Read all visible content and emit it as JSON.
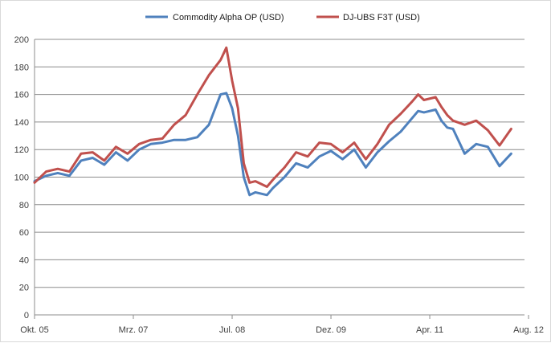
{
  "chart_data": {
    "type": "line",
    "title": "",
    "xlabel": "",
    "ylabel": "",
    "ylim": [
      0,
      200
    ],
    "y_ticks": [
      "0",
      "20",
      "40",
      "60",
      "80",
      "100",
      "120",
      "140",
      "160",
      "180",
      "200"
    ],
    "x_tick_labels": [
      "Okt. 05",
      "Mrz. 07",
      "Jul. 08",
      "Dez. 09",
      "Apr. 11",
      "Aug. 12"
    ],
    "grid": "horizontal",
    "legend": "top",
    "x_range": [
      "2005-10",
      "2012-08"
    ],
    "series": [
      {
        "name": "Commodity Alpha OP (USD)",
        "color": "#4f81bd",
        "x": [
          "2005-10",
          "2005-12",
          "2006-02",
          "2006-04",
          "2006-06",
          "2006-08",
          "2006-10",
          "2006-12",
          "2007-02",
          "2007-04",
          "2007-06",
          "2007-08",
          "2007-10",
          "2007-12",
          "2008-02",
          "2008-04",
          "2008-06",
          "2008-07",
          "2008-08",
          "2008-09",
          "2008-10",
          "2008-11",
          "2008-12",
          "2009-02",
          "2009-03",
          "2009-05",
          "2009-07",
          "2009-09",
          "2009-11",
          "2010-01",
          "2010-03",
          "2010-05",
          "2010-07",
          "2010-09",
          "2010-11",
          "2011-01",
          "2011-03",
          "2011-04",
          "2011-05",
          "2011-07",
          "2011-08",
          "2011-09",
          "2011-10",
          "2011-12",
          "2012-02",
          "2012-04",
          "2012-06",
          "2012-08"
        ],
        "values": [
          97,
          101,
          103,
          101,
          112,
          114,
          109,
          118,
          112,
          120,
          124,
          125,
          127,
          127,
          129,
          138,
          160,
          161,
          150,
          130,
          100,
          87,
          89,
          87,
          92,
          100,
          110,
          107,
          115,
          119,
          113,
          120,
          107,
          118,
          126,
          133,
          143,
          148,
          147,
          149,
          141,
          136,
          135,
          117,
          124,
          122,
          108,
          117
        ]
      },
      {
        "name": "DJ-UBS F3T (USD)",
        "color": "#c0504d",
        "x": [
          "2005-10",
          "2005-12",
          "2006-02",
          "2006-04",
          "2006-06",
          "2006-08",
          "2006-10",
          "2006-12",
          "2007-02",
          "2007-04",
          "2007-06",
          "2007-08",
          "2007-10",
          "2007-12",
          "2008-02",
          "2008-04",
          "2008-06",
          "2008-07",
          "2008-08",
          "2008-09",
          "2008-10",
          "2008-11",
          "2008-12",
          "2009-02",
          "2009-03",
          "2009-05",
          "2009-07",
          "2009-09",
          "2009-11",
          "2010-01",
          "2010-03",
          "2010-05",
          "2010-07",
          "2010-09",
          "2010-11",
          "2011-01",
          "2011-03",
          "2011-04",
          "2011-05",
          "2011-07",
          "2011-08",
          "2011-09",
          "2011-10",
          "2011-12",
          "2012-02",
          "2012-04",
          "2012-06",
          "2012-08"
        ],
        "values": [
          96,
          104,
          106,
          104,
          117,
          118,
          112,
          122,
          117,
          124,
          127,
          128,
          138,
          145,
          160,
          174,
          185,
          194,
          170,
          150,
          110,
          96,
          97,
          93,
          98,
          107,
          118,
          115,
          125,
          124,
          118,
          125,
          113,
          124,
          138,
          146,
          155,
          160,
          156,
          158,
          151,
          145,
          141,
          138,
          141,
          134,
          123,
          135
        ]
      }
    ]
  }
}
